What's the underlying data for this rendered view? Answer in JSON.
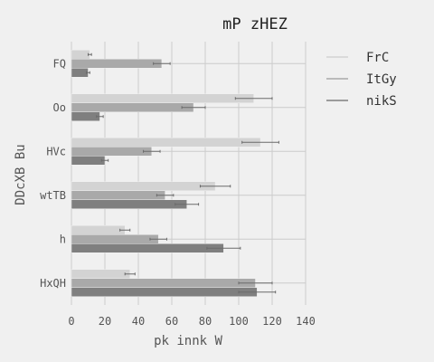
{
  "chart_data": {
    "type": "bar",
    "orientation": "horizontal",
    "title": "mP  zHEZ",
    "xlabel": "pk innk W",
    "ylabel": "DDcXB  Bu",
    "categories": [
      "FQ",
      "Oo",
      "HVc",
      "wtTB",
      "h",
      "HxQH"
    ],
    "xlim": [
      0,
      140
    ],
    "xticks": [
      0,
      20,
      40,
      60,
      80,
      100,
      120,
      140
    ],
    "grid": true,
    "legend_position": "right",
    "series": [
      {
        "name": "FrC",
        "color": "#d3d3d3",
        "values": [
          11,
          109,
          113,
          86,
          32,
          35
        ],
        "errors": [
          1,
          11,
          11,
          9,
          3,
          3
        ]
      },
      {
        "name": "ItGy",
        "color": "#a9a9a9",
        "values": [
          54,
          73,
          48,
          56,
          52,
          110
        ],
        "errors": [
          5,
          7,
          5,
          5,
          5,
          10
        ]
      },
      {
        "name": "nikS",
        "color": "#7f7f7f",
        "values": [
          10,
          17,
          20,
          69,
          91,
          111
        ],
        "errors": [
          1,
          2,
          2,
          7,
          10,
          11
        ]
      }
    ]
  }
}
